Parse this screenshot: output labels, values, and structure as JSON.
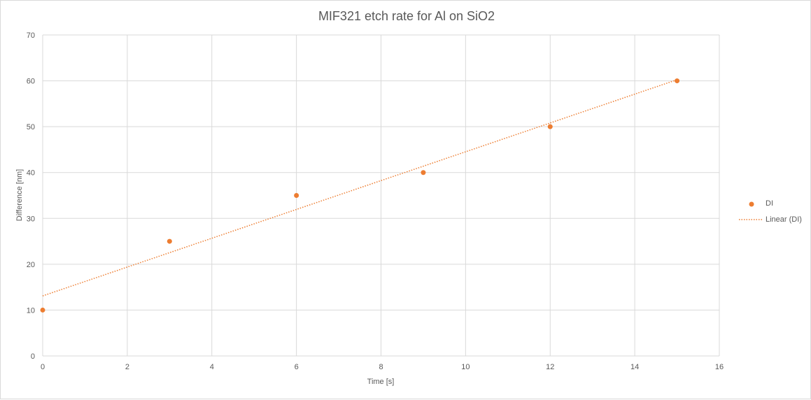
{
  "chart_data": {
    "type": "scatter",
    "title": "MIF321 etch rate for Al on SiO2",
    "xlabel": "Time [s]",
    "ylabel": "Difference [nm]",
    "xlim": [
      0,
      16
    ],
    "ylim": [
      0,
      70
    ],
    "x_ticks": [
      0,
      2,
      4,
      6,
      8,
      10,
      12,
      14,
      16
    ],
    "y_ticks": [
      0,
      10,
      20,
      30,
      40,
      50,
      60,
      70
    ],
    "grid": true,
    "legend_position": "right",
    "series": [
      {
        "name": "DI",
        "color": "#ED7D31",
        "x": [
          0,
          3,
          6,
          9,
          12,
          15
        ],
        "y": [
          10,
          25,
          35,
          40,
          50,
          60
        ]
      }
    ],
    "trendline": {
      "name": "Linear (DI)",
      "type": "linear",
      "style": "dotted",
      "color": "#ED7D31"
    }
  }
}
